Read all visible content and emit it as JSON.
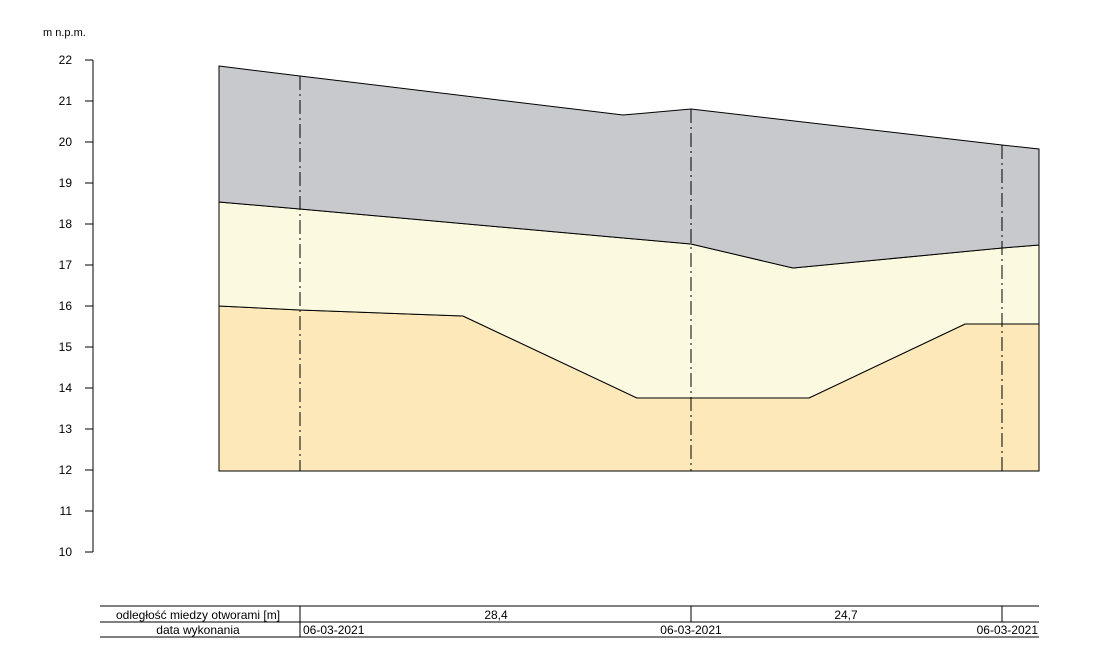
{
  "axis": {
    "unit_label": "m n.p.m.",
    "ticks": [
      "22",
      "21",
      "20",
      "19",
      "18",
      "17",
      "16",
      "15",
      "14",
      "13",
      "12",
      "11",
      "10"
    ]
  },
  "table": {
    "row1_label": "odległość miedzy otworami [m]",
    "row2_label": "data wykonania",
    "distances": [
      "28,4",
      "24,7"
    ],
    "dates": [
      "06-03-2021",
      "06-03-2021",
      "06-03-2021"
    ]
  },
  "layers": {
    "top_fill": "#c8c9cc",
    "middle_fill": "#fbf9e0",
    "bottom_fill": "#fde8b9"
  }
}
